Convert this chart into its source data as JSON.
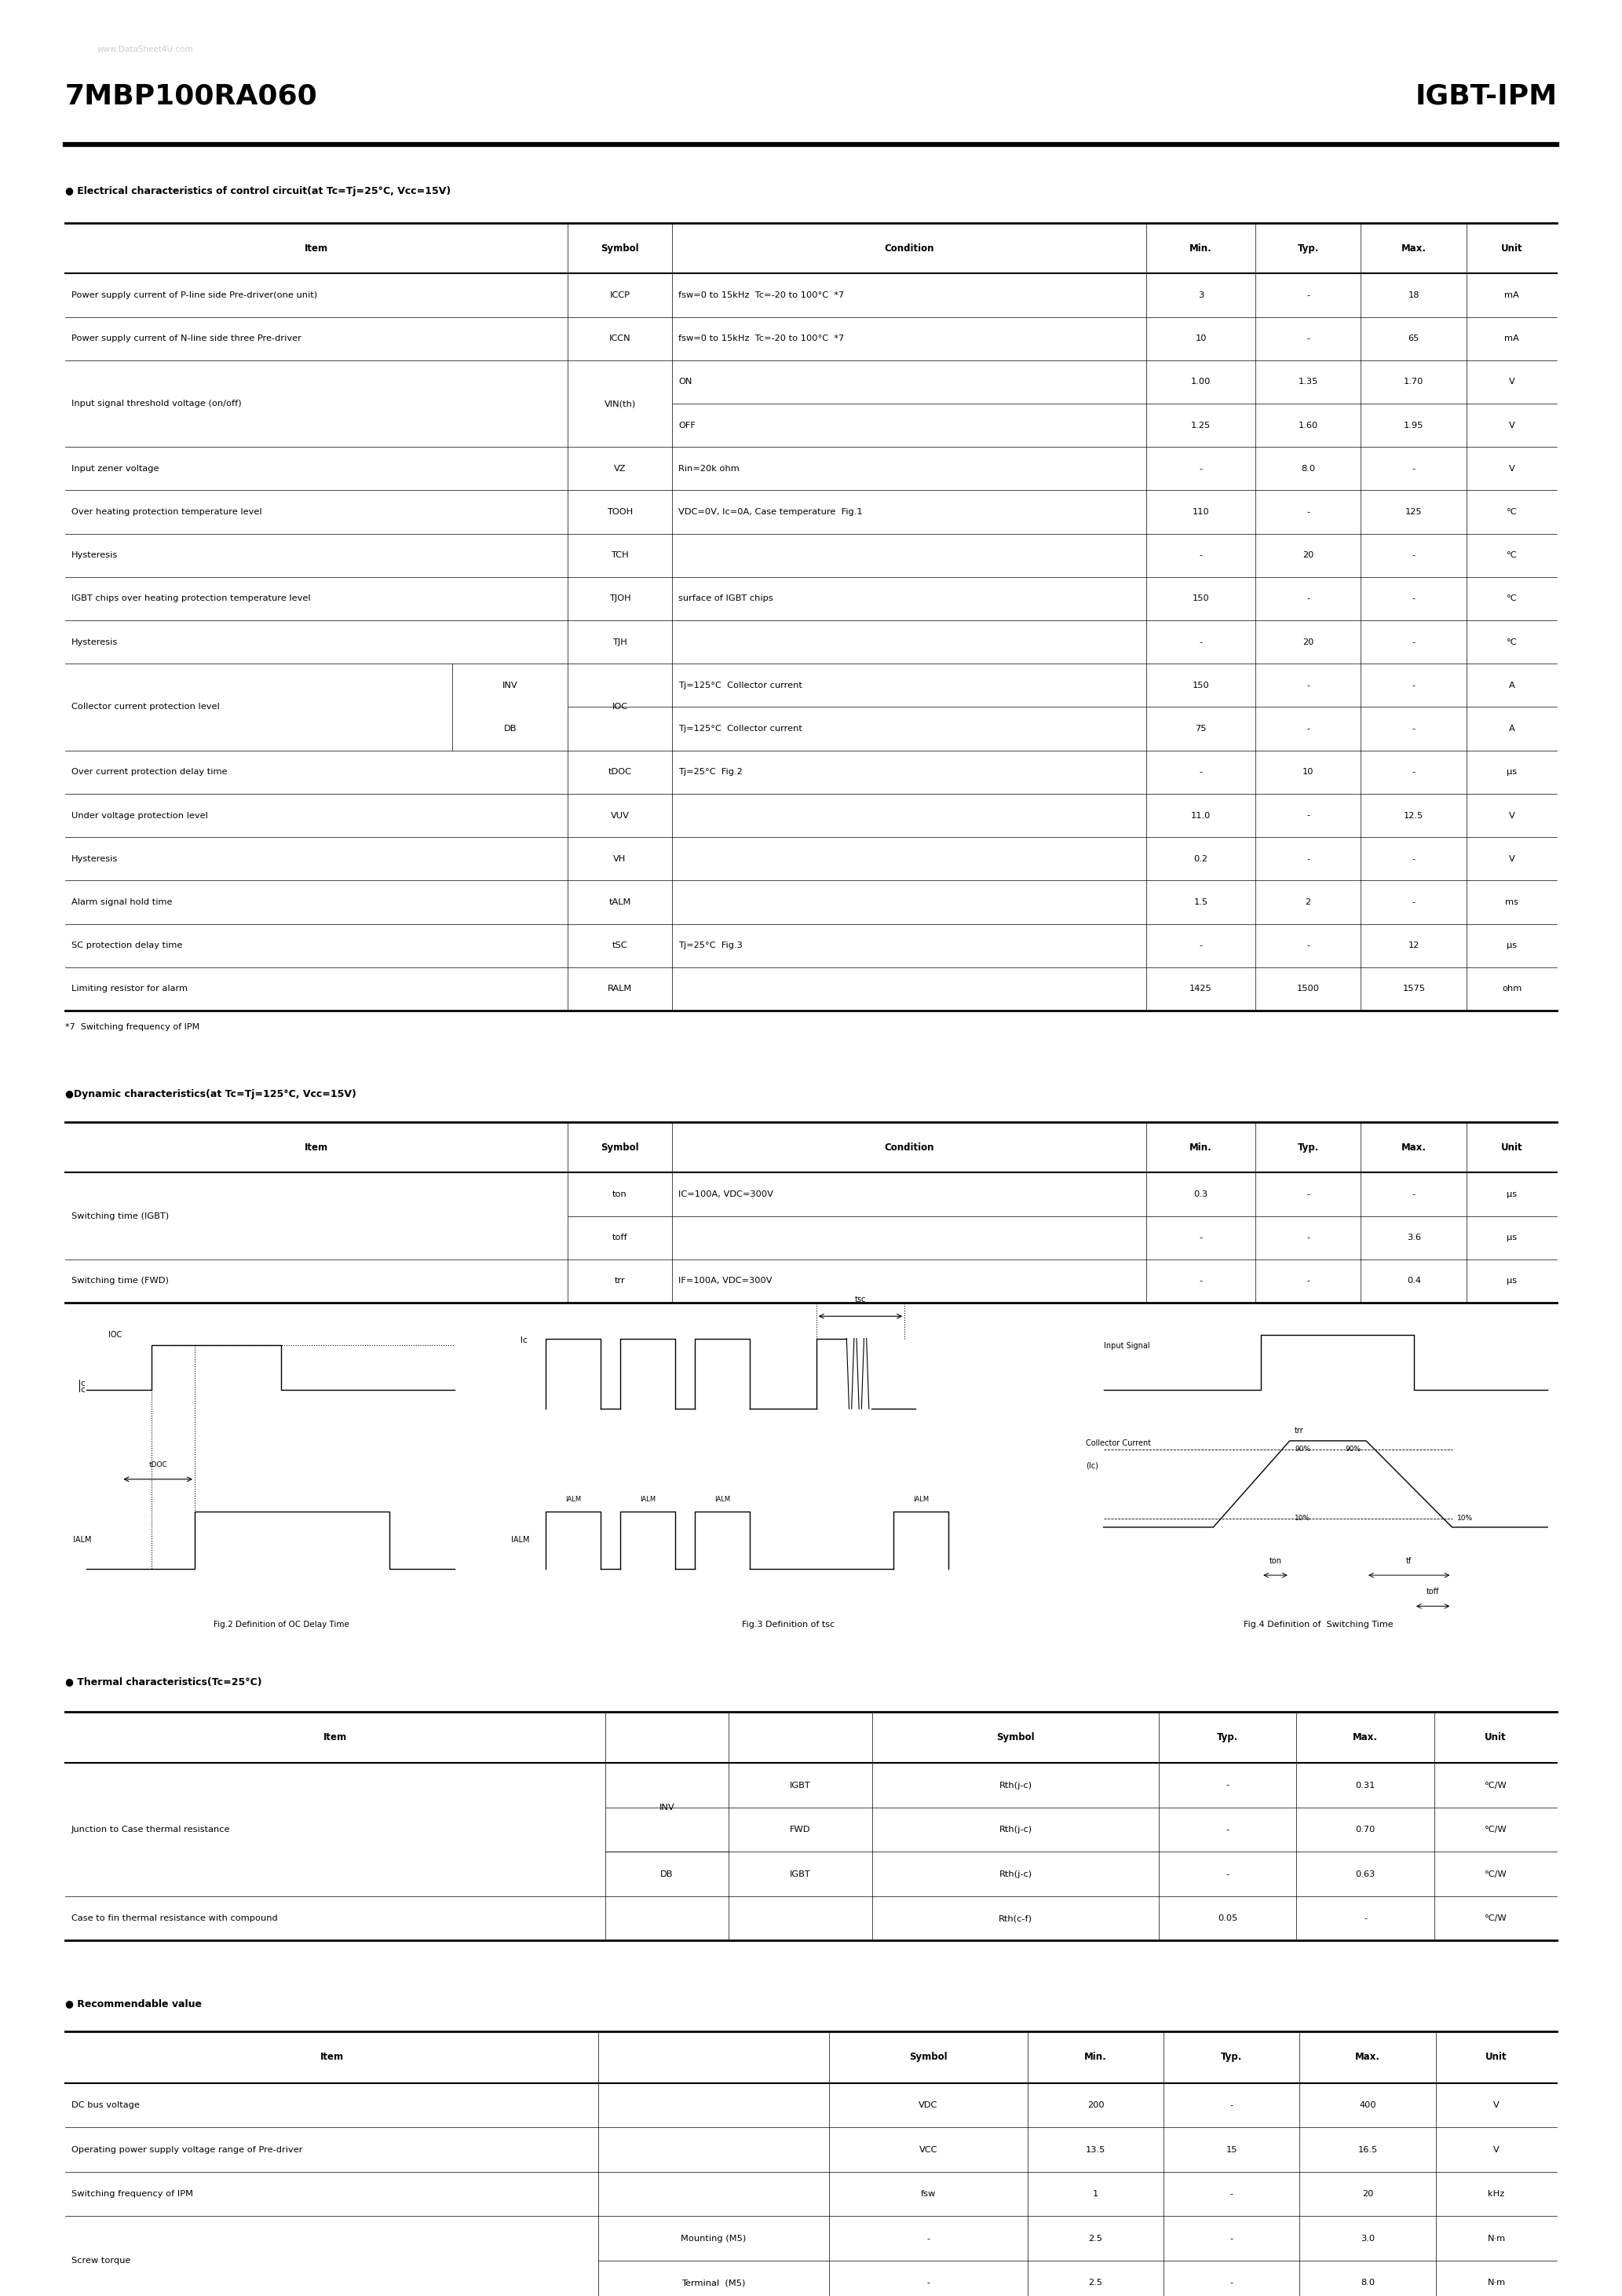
{
  "title_left": "7MBP100RA060",
  "title_right": "IGBT-IPM",
  "watermark": "www.DataSheet4U.com",
  "watermark2": "www.DataSheet4U.com",
  "bg_color": "#ffffff",
  "section1_title": "● Electrical characteristics of control circuit(at Tc=Tj=25°C, Vcc=15V)",
  "section1_headers": [
    "Item",
    "Symbol",
    "Condition",
    "Min.",
    "Typ.",
    "Max.",
    "Unit"
  ],
  "section2_title": "●Dynamic characteristics(at Tc=Tj=125°C, Vcc=15V)",
  "section2_headers": [
    "Item",
    "Symbol",
    "Condition",
    "Min.",
    "Typ.",
    "Max.",
    "Unit"
  ],
  "section3_title": "● Thermal characteristics(Tc=25°C)",
  "section3_headers": [
    "Item",
    "",
    "",
    "Symbol",
    "Typ.",
    "Max.",
    "Unit"
  ],
  "section4_title": "● Recommendable value",
  "section4_headers": [
    "Item",
    "",
    "Symbol",
    "Min.",
    "Typ.",
    "Max.",
    "Unit"
  ],
  "footnote1": "*7  Switching frequency of IPM",
  "fig2_caption": "Fig.2 Definition of OC Delay Time",
  "fig3_caption": "Fig.3 Definition of tsc",
  "fig4_caption": "Fig.4 Definition of  Switching Time"
}
